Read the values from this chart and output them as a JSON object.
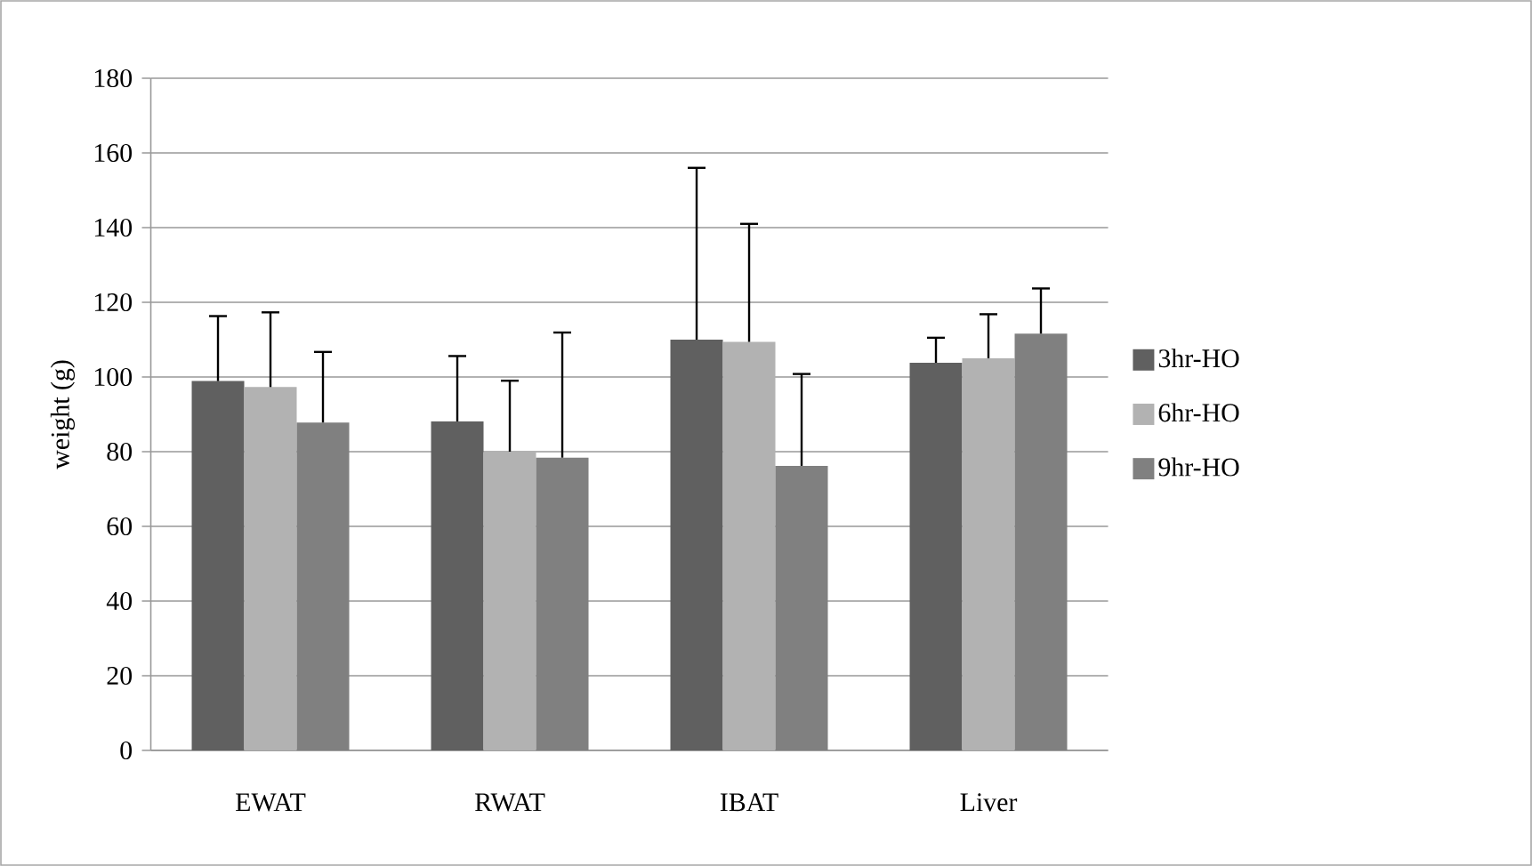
{
  "chart_data": {
    "type": "bar",
    "ylabel": "weight (g)",
    "categories": [
      "EWAT",
      "RWAT",
      "IBAT",
      "Liver"
    ],
    "series": [
      {
        "name": "3hr-HO",
        "color": "#606060",
        "values": [
          98.9,
          88.1,
          110,
          103.8
        ],
        "errors": [
          [
            98.9,
            116.3
          ],
          [
            88.1,
            105.6
          ],
          [
            110,
            156
          ],
          [
            103.8,
            110.5
          ]
        ]
      },
      {
        "name": "6hr-HO",
        "color": "#b2b2b2",
        "values": [
          97.3,
          80,
          109.4,
          105
        ],
        "errors": [
          [
            97.3,
            117.3
          ],
          [
            80,
            99
          ],
          [
            109.4,
            141
          ],
          [
            105,
            116.8
          ]
        ]
      },
      {
        "name": "9hr-HO",
        "color": "#808080",
        "values": [
          87.8,
          78.4,
          76.2,
          111.6
        ],
        "errors": [
          [
            87.8,
            106.7
          ],
          [
            78.4,
            111.9
          ],
          [
            76.2,
            100.8
          ],
          [
            111.6,
            123.7
          ]
        ]
      }
    ],
    "ylim": [
      0,
      180
    ],
    "yticks": [
      0,
      20,
      40,
      60,
      80,
      100,
      120,
      140,
      160,
      180
    ],
    "grid": "y",
    "legend": "right"
  }
}
